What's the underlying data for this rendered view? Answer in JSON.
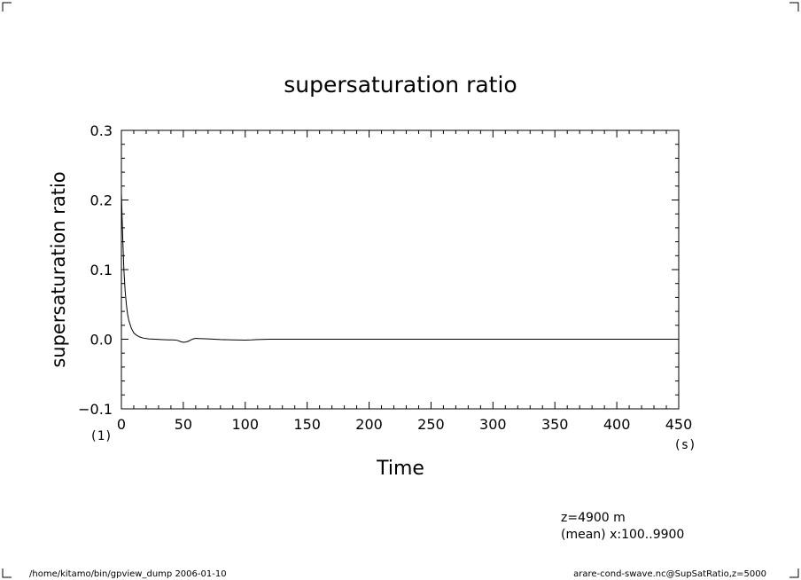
{
  "chart_data": {
    "type": "line",
    "title": "supersaturation ratio",
    "xlabel": "Time",
    "ylabel": "supersaturation ratio",
    "x_unit": "(s)",
    "y_unit": "(1)",
    "xlim": [
      0,
      450
    ],
    "ylim": [
      -0.1,
      0.3
    ],
    "x_ticks": [
      0,
      50,
      100,
      150,
      200,
      250,
      300,
      350,
      400,
      450
    ],
    "x_tick_labels": [
      "0",
      "50",
      "100",
      "150",
      "200",
      "250",
      "300",
      "350",
      "400",
      "450"
    ],
    "y_ticks": [
      -0.1,
      0.0,
      0.1,
      0.2,
      0.3
    ],
    "y_tick_labels": [
      "−0.1",
      "0.0",
      "0.1",
      "0.2",
      "0.3"
    ],
    "grid": false,
    "series": [
      {
        "x": [
          0,
          1,
          2,
          3,
          4,
          5,
          6,
          8,
          10,
          12,
          15,
          18,
          22,
          27,
          32,
          38,
          42,
          45,
          48,
          50,
          52,
          54,
          56,
          58,
          60,
          62,
          65,
          70,
          75,
          80,
          90,
          100,
          105,
          110,
          120,
          150,
          200,
          250,
          300,
          350,
          400,
          450
        ],
        "y": [
          0.21,
          0.15,
          0.1,
          0.07,
          0.05,
          0.036,
          0.027,
          0.016,
          0.009,
          0.006,
          0.003,
          0.0015,
          0.0005,
          0.0,
          -0.0005,
          -0.001,
          -0.001,
          -0.0015,
          -0.0035,
          -0.0045,
          -0.004,
          -0.003,
          -0.001,
          0.0005,
          0.0012,
          0.001,
          0.0008,
          0.0005,
          0.0,
          -0.0005,
          -0.001,
          -0.0012,
          -0.001,
          -0.0005,
          0.0,
          0.0,
          0.0,
          0.0,
          0.0,
          0.0,
          0.0,
          0.0
        ]
      }
    ]
  },
  "annotations": {
    "z_level": "z=4900 m",
    "mean_range": "(mean) x:100..9900"
  },
  "footer": {
    "left": "/home/kitamo/bin/gpview_dump  2006-01-10",
    "right": "arare-cond-swave.nc@SupSatRatio,z=5000"
  }
}
